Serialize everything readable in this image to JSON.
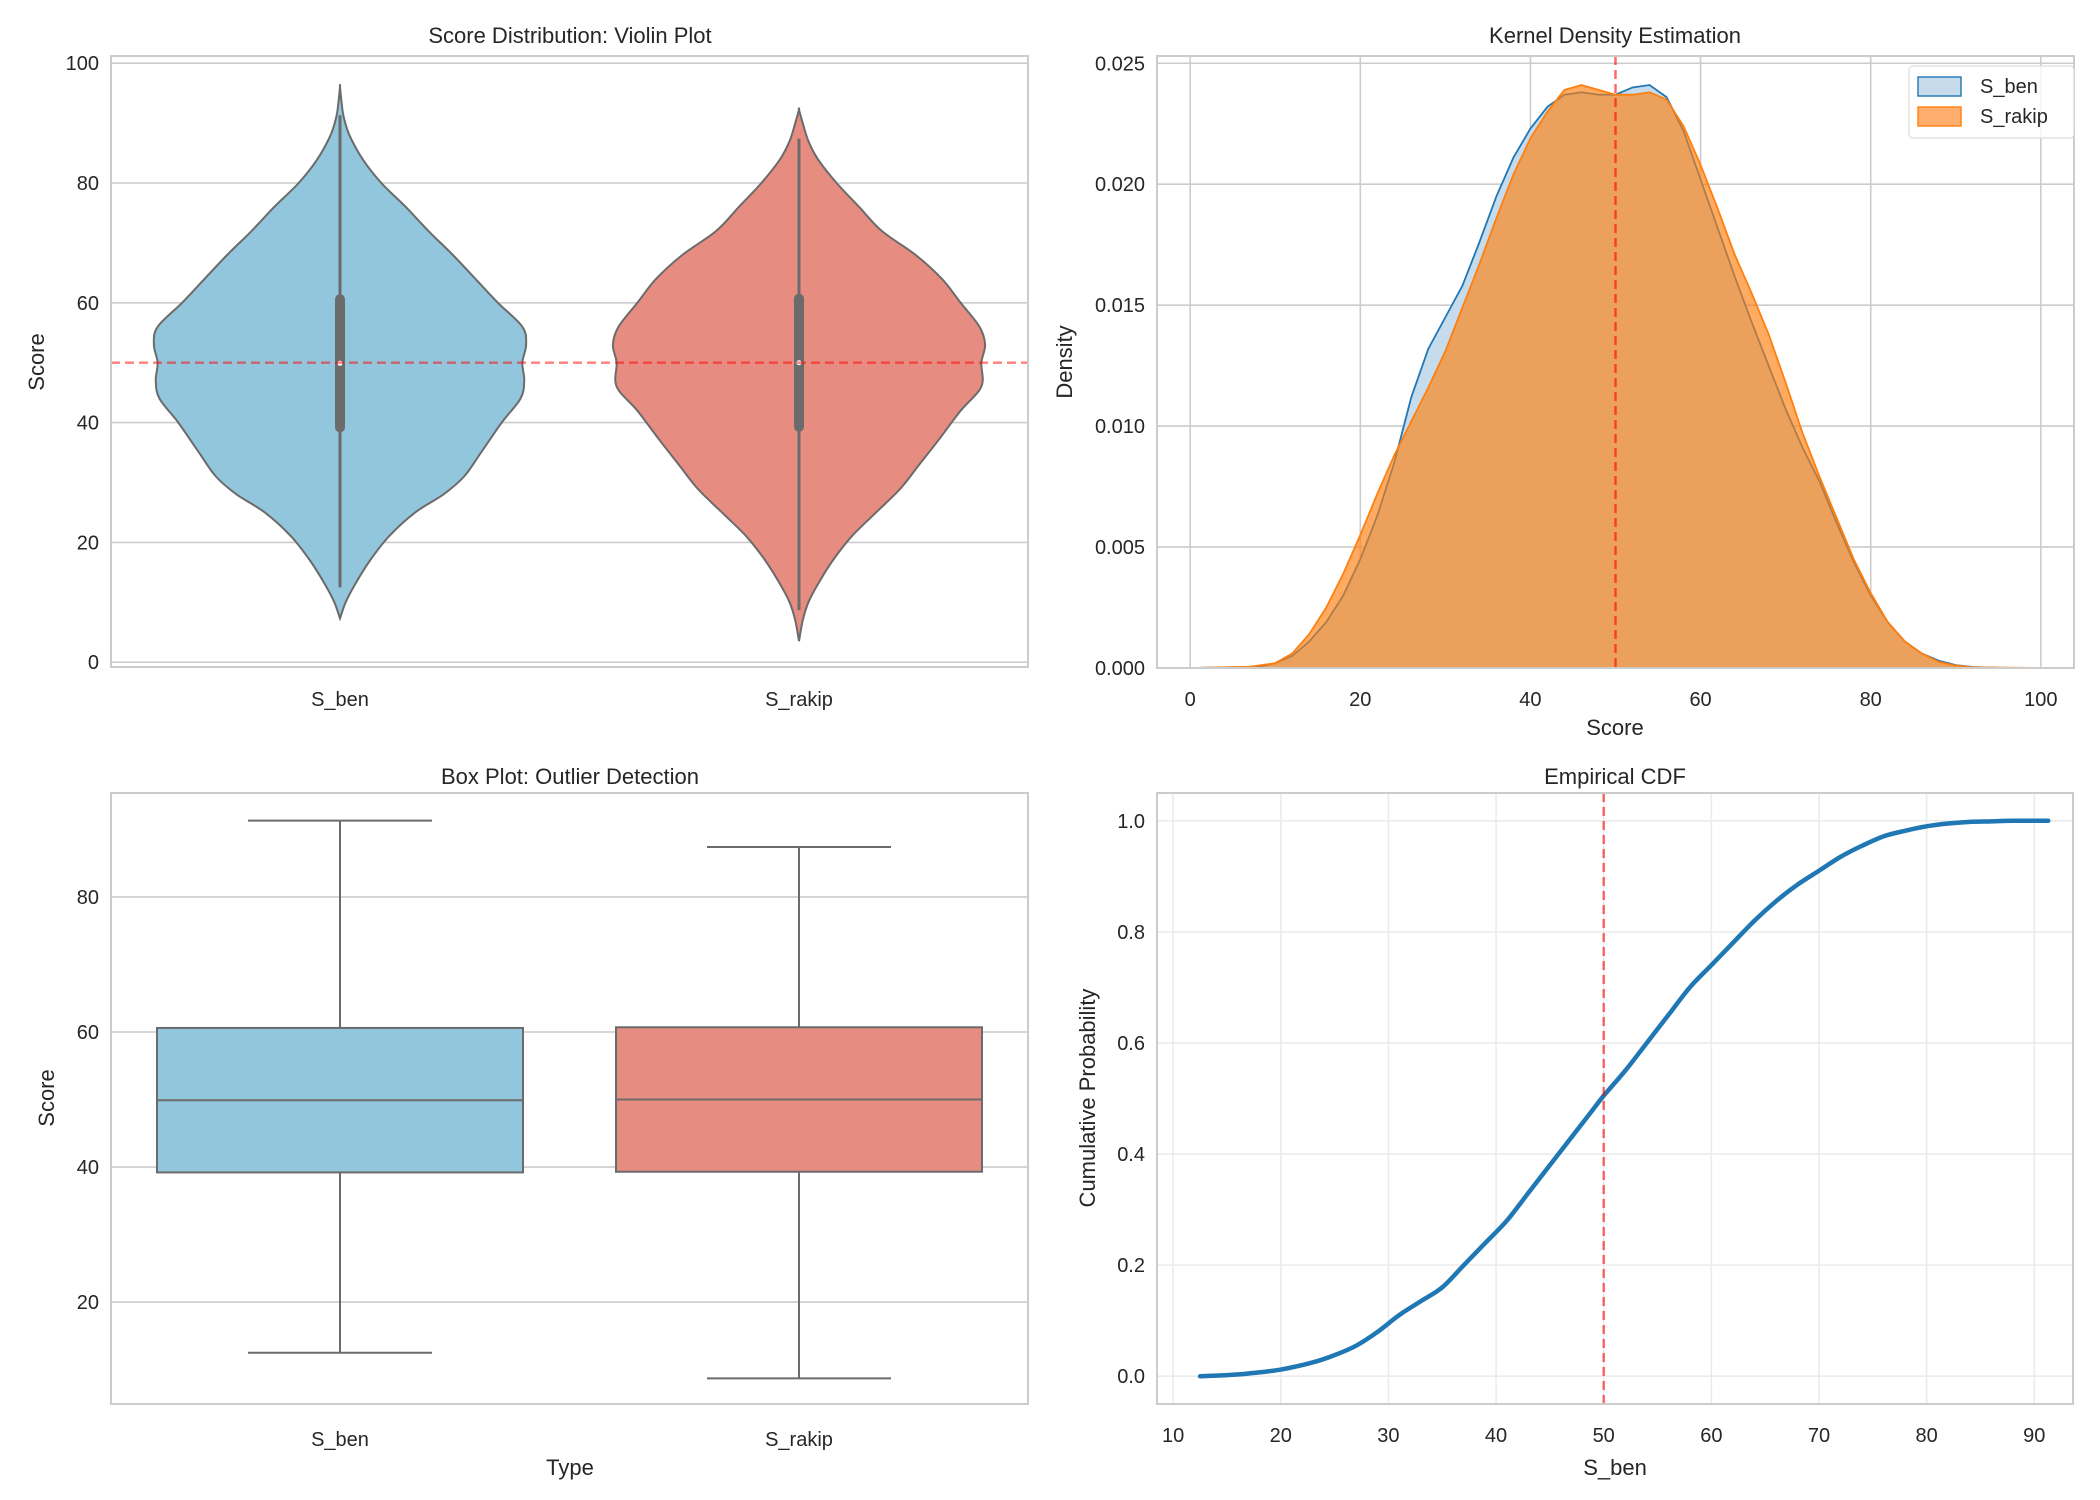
{
  "chart_data": [
    {
      "id": "violin",
      "type": "violin",
      "title": "Score Distribution: Violin Plot",
      "xlabel": "",
      "ylabel": "Score",
      "categories": [
        "S_ben",
        "S_rakip"
      ],
      "ylim": [
        -0.8,
        101.2
      ],
      "yticks": [
        0,
        20,
        40,
        60,
        80,
        100
      ],
      "grid": true,
      "reference_line": {
        "y": 50,
        "color": "#ff0000",
        "style": "dashed",
        "alpha": 0.5
      },
      "series": [
        {
          "name": "S_ben",
          "color": "#92c6dc",
          "min_extent": 7.3,
          "max_extent": 96.0,
          "whisker_low": 12.5,
          "q1": 39.2,
          "median": 49.9,
          "q3": 60.6,
          "whisker_high": 91.3,
          "density_profile": [
            [
              7.3,
              0.0
            ],
            [
              10,
              0.03
            ],
            [
              13,
              0.08
            ],
            [
              17,
              0.16
            ],
            [
              21,
              0.26
            ],
            [
              25,
              0.4
            ],
            [
              28,
              0.55
            ],
            [
              31,
              0.66
            ],
            [
              35,
              0.75
            ],
            [
              40,
              0.86
            ],
            [
              44,
              0.96
            ],
            [
              47,
              0.98
            ],
            [
              50,
              0.97
            ],
            [
              53,
              0.99
            ],
            [
              56,
              0.97
            ],
            [
              60,
              0.84
            ],
            [
              64,
              0.72
            ],
            [
              68,
              0.6
            ],
            [
              72,
              0.47
            ],
            [
              76,
              0.35
            ],
            [
              80,
              0.22
            ],
            [
              84,
              0.12
            ],
            [
              88,
              0.05
            ],
            [
              91,
              0.02
            ],
            [
              93,
              0.01
            ],
            [
              96,
              0.0
            ]
          ]
        },
        {
          "name": "S_rakip",
          "color": "#e78c80",
          "min_extent": 3.5,
          "max_extent": 92.2,
          "whisker_low": 8.7,
          "q1": 39.3,
          "median": 50.0,
          "q3": 60.7,
          "whisker_high": 87.4,
          "density_profile": [
            [
              3.5,
              0.0
            ],
            [
              7,
              0.02
            ],
            [
              10,
              0.05
            ],
            [
              13,
              0.1
            ],
            [
              17,
              0.18
            ],
            [
              21,
              0.28
            ],
            [
              25,
              0.41
            ],
            [
              29,
              0.54
            ],
            [
              33,
              0.64
            ],
            [
              37,
              0.74
            ],
            [
              42,
              0.86
            ],
            [
              46,
              0.97
            ],
            [
              50,
              0.97
            ],
            [
              53,
              0.99
            ],
            [
              56,
              0.96
            ],
            [
              60,
              0.86
            ],
            [
              64,
              0.76
            ],
            [
              68,
              0.62
            ],
            [
              72,
              0.44
            ],
            [
              76,
              0.32
            ],
            [
              80,
              0.2
            ],
            [
              84,
              0.1
            ],
            [
              87,
              0.05
            ],
            [
              90,
              0.02
            ],
            [
              92.2,
              0.0
            ]
          ]
        }
      ]
    },
    {
      "id": "kde",
      "type": "area",
      "title": "Kernel Density Estimation",
      "xlabel": "Score",
      "ylabel": "Density",
      "xlim": [
        -3.9,
        103.9
      ],
      "ylim": [
        0,
        0.0253
      ],
      "xticks": [
        0,
        20,
        40,
        60,
        80,
        100
      ],
      "yticks": [
        0.0,
        0.005,
        0.01,
        0.015,
        0.02,
        0.025
      ],
      "ytick_labels": [
        "0.000",
        "0.005",
        "0.010",
        "0.015",
        "0.020",
        "0.025"
      ],
      "grid": true,
      "legend": {
        "position": "top-right",
        "entries": [
          "S_ben",
          "S_rakip"
        ]
      },
      "reference_line": {
        "x": 50,
        "color": "#ff0000",
        "style": "dashed",
        "alpha": 0.6
      },
      "series": [
        {
          "name": "S_ben",
          "fill": "#c6dcec",
          "stroke": "#1f77b4",
          "x": [
            0,
            8,
            10,
            12,
            14,
            16,
            18,
            20,
            22,
            24,
            26,
            28,
            30,
            32,
            34,
            36,
            38,
            40,
            42,
            44,
            46,
            48,
            50,
            52,
            54,
            56,
            58,
            60,
            62,
            64,
            66,
            68,
            70,
            72,
            74,
            76,
            78,
            80,
            82,
            84,
            86,
            88,
            90,
            92,
            95,
            100
          ],
          "y": [
            0,
            5e-05,
            0.0002,
            0.0005,
            0.0011,
            0.0019,
            0.003,
            0.0045,
            0.0063,
            0.0085,
            0.0112,
            0.0132,
            0.0145,
            0.0158,
            0.0176,
            0.0195,
            0.0211,
            0.0223,
            0.0232,
            0.0237,
            0.0238,
            0.0237,
            0.0237,
            0.024,
            0.0241,
            0.0236,
            0.0222,
            0.0202,
            0.0182,
            0.0162,
            0.0143,
            0.0125,
            0.0107,
            0.0091,
            0.0077,
            0.006,
            0.0044,
            0.003,
            0.0019,
            0.0011,
            0.0006,
            0.0003,
            0.00012,
            4e-05,
            1e-05,
            0
          ]
        },
        {
          "name": "S_rakip",
          "fill": "#ff7f0e",
          "stroke": "#ff7f0e",
          "x": [
            0,
            7,
            10,
            12,
            14,
            16,
            18,
            20,
            22,
            24,
            26,
            28,
            30,
            32,
            34,
            36,
            38,
            40,
            42,
            44,
            46,
            48,
            50,
            52,
            54,
            56,
            58,
            60,
            62,
            64,
            66,
            68,
            70,
            72,
            74,
            76,
            78,
            80,
            82,
            84,
            86,
            88,
            90,
            92,
            100
          ],
          "y": [
            0,
            5e-05,
            0.0002,
            0.0006,
            0.0014,
            0.0025,
            0.0039,
            0.0055,
            0.0072,
            0.0088,
            0.0102,
            0.0116,
            0.0131,
            0.0149,
            0.0167,
            0.0186,
            0.0204,
            0.0219,
            0.023,
            0.0239,
            0.0241,
            0.0239,
            0.0237,
            0.0237,
            0.0238,
            0.0235,
            0.0224,
            0.0208,
            0.019,
            0.0171,
            0.0155,
            0.0138,
            0.0118,
            0.0097,
            0.0079,
            0.0062,
            0.0045,
            0.0031,
            0.0019,
            0.0011,
            0.0006,
            0.00025,
            0.0001,
            3e-05,
            0
          ]
        }
      ]
    },
    {
      "id": "box",
      "type": "box",
      "title": "Box Plot: Outlier Detection",
      "xlabel": "Type",
      "ylabel": "Score",
      "categories": [
        "S_ben",
        "S_rakip"
      ],
      "ylim": [
        4.9,
        95.4
      ],
      "yticks": [
        20,
        40,
        60,
        80
      ],
      "grid": true,
      "series": [
        {
          "name": "S_ben",
          "color": "#92c6dc",
          "whisker_low": 12.5,
          "q1": 39.2,
          "median": 49.9,
          "q3": 60.6,
          "whisker_high": 91.3
        },
        {
          "name": "S_rakip",
          "color": "#e78c80",
          "whisker_low": 8.7,
          "q1": 39.3,
          "median": 50.0,
          "q3": 60.7,
          "whisker_high": 87.4
        }
      ]
    },
    {
      "id": "ecdf",
      "type": "line",
      "title": "Empirical CDF",
      "xlabel": "S_ben",
      "ylabel": "Cumulative Probability",
      "xlim": [
        8.5,
        93.6
      ],
      "ylim": [
        -0.05,
        1.05
      ],
      "xticks": [
        10,
        20,
        30,
        40,
        50,
        60,
        70,
        80,
        90
      ],
      "yticks": [
        0.0,
        0.2,
        0.4,
        0.6,
        0.8,
        1.0
      ],
      "ytick_labels": [
        "0.0",
        "0.2",
        "0.4",
        "0.6",
        "0.8",
        "1.0"
      ],
      "grid": true,
      "reference_line": {
        "x": 50,
        "color": "#ff0000",
        "style": "dashed",
        "alpha": 0.6
      },
      "series": [
        {
          "name": "S_ben",
          "color": "#1f77b4",
          "x": [
            12.5,
            15,
            17,
            20,
            23,
            25,
            27,
            29,
            31,
            33,
            35,
            37,
            39,
            41,
            43,
            45,
            47,
            49,
            50,
            52,
            54,
            56,
            58,
            60,
            62,
            64,
            66,
            68,
            70,
            72,
            74,
            76,
            78,
            80,
            82,
            84,
            86,
            88,
            91.3
          ],
          "y": [
            0.0,
            0.002,
            0.005,
            0.012,
            0.025,
            0.038,
            0.055,
            0.08,
            0.11,
            0.135,
            0.16,
            0.2,
            0.24,
            0.28,
            0.33,
            0.38,
            0.43,
            0.48,
            0.505,
            0.55,
            0.6,
            0.65,
            0.7,
            0.74,
            0.78,
            0.82,
            0.855,
            0.885,
            0.91,
            0.935,
            0.955,
            0.972,
            0.982,
            0.99,
            0.995,
            0.998,
            0.999,
            1.0,
            1.0
          ]
        }
      ]
    }
  ]
}
